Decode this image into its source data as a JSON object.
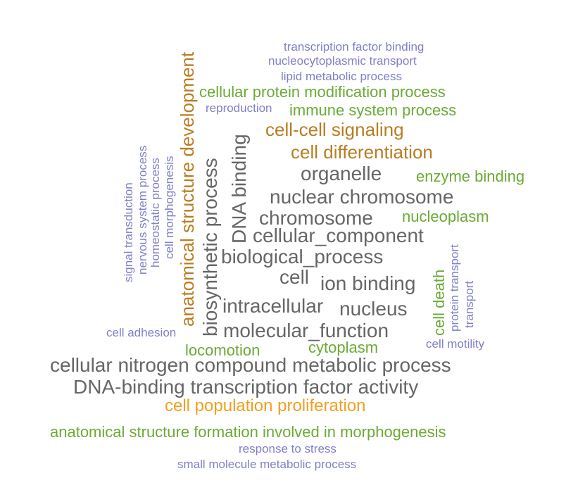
{
  "colors": {
    "gray": "#666666",
    "brown": "#b87d22",
    "orange": "#f0a020",
    "green": "#6aab35",
    "purple": "#8080c8"
  },
  "words": [
    {
      "text": "transcription factor binding",
      "color": "purple",
      "size": 17
    },
    {
      "text": "nucleocytoplasmic transport",
      "color": "purple",
      "size": 17
    },
    {
      "text": "lipid metabolic process",
      "color": "purple",
      "size": 17
    },
    {
      "text": "cellular protein modification process",
      "color": "green",
      "size": 22
    },
    {
      "text": "reproduction",
      "color": "purple",
      "size": 17
    },
    {
      "text": "immune system process",
      "color": "green",
      "size": 22
    },
    {
      "text": "cell-cell signaling",
      "color": "brown",
      "size": 26
    },
    {
      "text": "cell differentiation",
      "color": "brown",
      "size": 26
    },
    {
      "text": "organelle",
      "color": "gray",
      "size": 28
    },
    {
      "text": "enzyme binding",
      "color": "green",
      "size": 22
    },
    {
      "text": "nuclear chromosome",
      "color": "gray",
      "size": 28
    },
    {
      "text": "chromosome",
      "color": "gray",
      "size": 28
    },
    {
      "text": "nucleoplasm",
      "color": "green",
      "size": 22
    },
    {
      "text": "cellular_component",
      "color": "gray",
      "size": 28
    },
    {
      "text": "biological_process",
      "color": "gray",
      "size": 28
    },
    {
      "text": "cell",
      "color": "gray",
      "size": 28
    },
    {
      "text": "ion binding",
      "color": "gray",
      "size": 28
    },
    {
      "text": "intracellular",
      "color": "gray",
      "size": 28
    },
    {
      "text": "nucleus",
      "color": "gray",
      "size": 28
    },
    {
      "text": "molecular_function",
      "color": "gray",
      "size": 28
    },
    {
      "text": "cell adhesion",
      "color": "purple",
      "size": 17
    },
    {
      "text": "locomotion",
      "color": "green",
      "size": 22
    },
    {
      "text": "cytoplasm",
      "color": "green",
      "size": 22
    },
    {
      "text": "cell motility",
      "color": "purple",
      "size": 17
    },
    {
      "text": "cellular nitrogen compound metabolic process",
      "color": "gray",
      "size": 28
    },
    {
      "text": "DNA-binding transcription factor activity",
      "color": "gray",
      "size": 28
    },
    {
      "text": "cell population proliferation",
      "color": "orange",
      "size": 24
    },
    {
      "text": "anatomical structure formation involved in morphogenesis",
      "color": "green",
      "size": 22
    },
    {
      "text": "response to stress",
      "color": "purple",
      "size": 17
    },
    {
      "text": "small molecule metabolic process",
      "color": "purple",
      "size": 17
    },
    {
      "text": "signal transduction",
      "color": "purple",
      "size": 17
    },
    {
      "text": "nervous system process",
      "color": "purple",
      "size": 17
    },
    {
      "text": "homeostatic process",
      "color": "purple",
      "size": 17
    },
    {
      "text": "cell morphogenesis",
      "color": "purple",
      "size": 17
    },
    {
      "text": "anatomical structure development",
      "color": "brown",
      "size": 26
    },
    {
      "text": "biosynthetic process",
      "color": "gray",
      "size": 28
    },
    {
      "text": "DNA binding",
      "color": "gray",
      "size": 28
    },
    {
      "text": "cell death",
      "color": "green",
      "size": 22
    },
    {
      "text": "protein transport",
      "color": "purple",
      "size": 17
    },
    {
      "text": "transport",
      "color": "purple",
      "size": 17
    }
  ]
}
